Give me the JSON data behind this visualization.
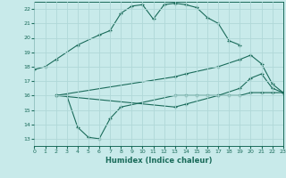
{
  "xlabel": "Humidex (Indice chaleur)",
  "xlim": [
    0,
    23
  ],
  "ylim": [
    12.5,
    22.5
  ],
  "yticks": [
    13,
    14,
    15,
    16,
    17,
    18,
    19,
    20,
    21,
    22
  ],
  "xticks": [
    0,
    1,
    2,
    3,
    4,
    5,
    6,
    7,
    8,
    9,
    10,
    11,
    12,
    13,
    14,
    15,
    16,
    17,
    18,
    19,
    20,
    21,
    22,
    23
  ],
  "bg_color": "#c8eaea",
  "line_color": "#1a6b5a",
  "grid_color": "#b0d8d8",
  "curves": [
    {
      "x": [
        0,
        1,
        2,
        4,
        6,
        7,
        8,
        9,
        10,
        11,
        12,
        13,
        14,
        15,
        16,
        17,
        18,
        19
      ],
      "y": [
        17.8,
        18.0,
        18.5,
        19.5,
        20.2,
        20.5,
        21.7,
        22.2,
        22.3,
        21.3,
        22.3,
        22.4,
        22.3,
        22.1,
        21.4,
        21.0,
        19.8,
        19.5
      ]
    },
    {
      "x": [
        2,
        3,
        4,
        5,
        6,
        7,
        8,
        13,
        14,
        15,
        16,
        17,
        18,
        19,
        20,
        21,
        22,
        23
      ],
      "y": [
        16.0,
        16.0,
        13.8,
        13.1,
        13.0,
        14.4,
        15.2,
        16.0,
        16.0,
        16.0,
        16.0,
        16.0,
        16.0,
        16.0,
        16.2,
        16.2,
        16.2,
        16.2
      ]
    },
    {
      "x": [
        2,
        13,
        14,
        17,
        19,
        20,
        21,
        22,
        23
      ],
      "y": [
        16.0,
        17.3,
        17.5,
        18.0,
        18.5,
        18.8,
        18.2,
        16.8,
        16.2
      ]
    },
    {
      "x": [
        2,
        13,
        14,
        17,
        19,
        20,
        21,
        22,
        23
      ],
      "y": [
        16.0,
        15.2,
        15.4,
        16.0,
        16.5,
        17.2,
        17.5,
        16.5,
        16.2
      ]
    }
  ]
}
